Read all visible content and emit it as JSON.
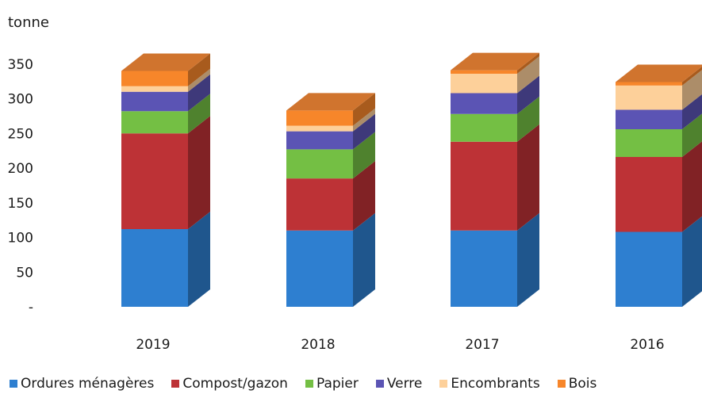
{
  "chart_data": {
    "type": "bar",
    "stacked": true,
    "three_d": true,
    "unit_label": "tonne",
    "categories": [
      "2019",
      "2018",
      "2017",
      "2016"
    ],
    "y_ticks": [
      "-",
      "50",
      "100",
      "150",
      "200",
      "250",
      "300",
      "350"
    ],
    "ylim": [
      0,
      350
    ],
    "series": [
      {
        "name": "Ordures ménagères",
        "color": "#2e7fd0",
        "values": [
          112,
          110,
          110,
          108
        ]
      },
      {
        "name": "Compost/gazon",
        "color": "#bd3236",
        "values": [
          138,
          75,
          128,
          108
        ]
      },
      {
        "name": "Papier",
        "color": "#74bf44",
        "values": [
          32,
          42,
          40,
          40
        ]
      },
      {
        "name": "Verre",
        "color": "#5b54b4",
        "values": [
          28,
          26,
          30,
          28
        ]
      },
      {
        "name": "Encombrants",
        "color": "#fdd09a",
        "values": [
          8,
          8,
          28,
          35
        ]
      },
      {
        "name": "Bois",
        "color": "#f7862a",
        "values": [
          22,
          22,
          5,
          5
        ]
      }
    ],
    "legend_position": "bottom",
    "grid": false
  }
}
